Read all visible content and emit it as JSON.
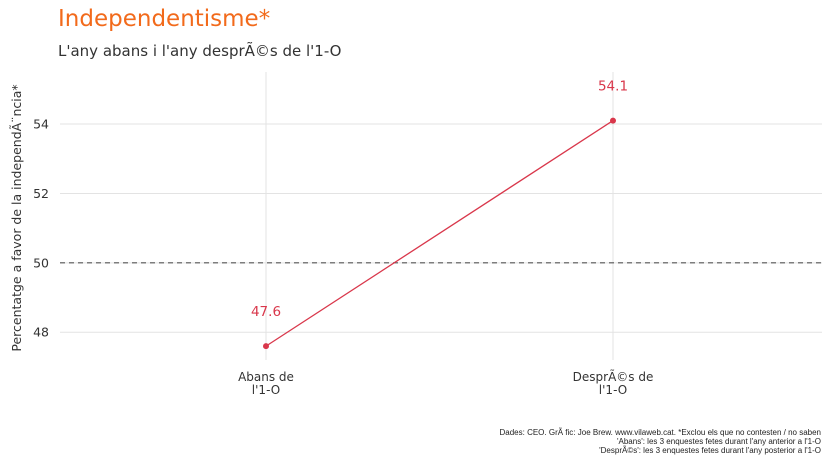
{
  "title": "Independentisme*",
  "subtitle": "L'any abans i l'any desprÃ©s de l'1-O",
  "caption": {
    "line1": "Dades: CEO. GrÃ fic: Joe Brew. www.vilaweb.cat. *Exclou els que no contesten / no saben",
    "line2": "'Abans': les 3 enquestes fetes durant l'any anterior a l'1-O",
    "line3": "'DesprÃ©s': les 3 enquestes fetes durant l'any posterior a l'1-O"
  },
  "colors": {
    "title": "#f26a1b",
    "series": "#d9374b",
    "grid": "#e3e3e3",
    "reference": "#555555"
  },
  "chart_data": {
    "type": "line",
    "title": "Independentisme*",
    "subtitle": "L'any abans i l'any desprÃ©s de l'1-O",
    "xlabel": "",
    "ylabel": "Percentatge a favor de la independÃ¨ncia*",
    "categories": [
      [
        "Abans de",
        "l'1-O"
      ],
      [
        "DesprÃ©s de",
        "l'1-O"
      ]
    ],
    "values": [
      47.6,
      54.1
    ],
    "value_labels": [
      "47.6",
      "54.1"
    ],
    "ylim": [
      47.2,
      55.5
    ],
    "yticks": [
      48,
      50,
      52,
      54
    ],
    "reference_line": 50,
    "grid": true,
    "legend": "none"
  }
}
